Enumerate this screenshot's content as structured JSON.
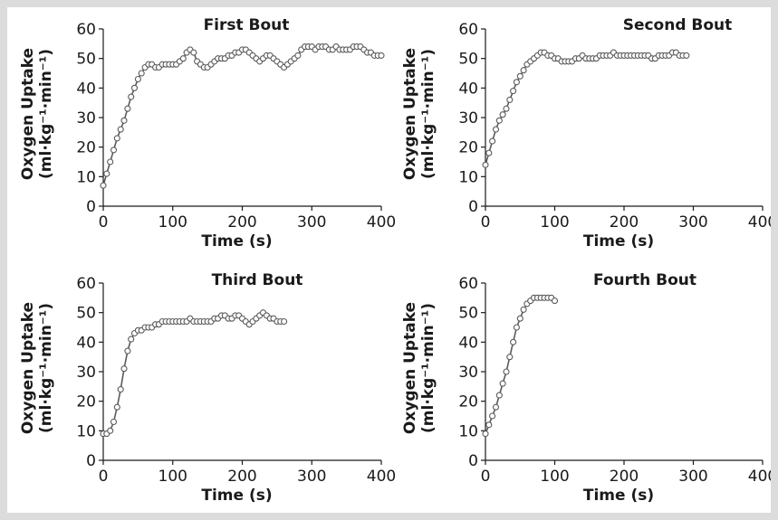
{
  "figure": {
    "chart_data": [
      {
        "type": "line",
        "title": "First Bout",
        "xlabel": "Time (s)",
        "ylabel_line1": "Oxygen Uptake",
        "ylabel_line2": "(ml·kg⁻¹·min⁻¹)",
        "xlim": [
          0,
          400
        ],
        "ylim": [
          0,
          60
        ],
        "xticks": [
          "0",
          "100",
          "200",
          "300",
          "400"
        ],
        "yticks": [
          "0",
          "10",
          "20",
          "30",
          "40",
          "50",
          "60"
        ],
        "grid": false,
        "legend": "none",
        "series": [
          {
            "x": [
              0,
              5,
              10,
              15,
              20,
              25,
              30,
              35,
              40,
              45,
              50,
              55,
              60,
              65,
              70,
              75,
              80,
              85,
              90,
              95,
              100,
              105,
              110,
              115,
              120,
              125,
              130,
              135,
              140,
              145,
              150,
              155,
              160,
              165,
              170,
              175,
              180,
              185,
              190,
              195,
              200,
              205,
              210,
              215,
              220,
              225,
              230,
              235,
              240,
              245,
              250,
              255,
              260,
              265,
              270,
              275,
              280,
              285,
              290,
              295,
              300,
              305,
              310,
              315,
              320,
              325,
              330,
              335,
              340,
              345,
              350,
              355,
              360,
              365,
              370,
              375,
              380,
              385,
              390,
              395,
              400
            ],
            "y": [
              7,
              11,
              15,
              19,
              23,
              26,
              29,
              33,
              37,
              40,
              43,
              45,
              47,
              48,
              48,
              47,
              47,
              48,
              48,
              48,
              48,
              48,
              49,
              50,
              52,
              53,
              52,
              49,
              48,
              47,
              47,
              48,
              49,
              50,
              50,
              50,
              51,
              51,
              52,
              52,
              53,
              53,
              52,
              51,
              50,
              49,
              50,
              51,
              51,
              50,
              49,
              48,
              47,
              48,
              49,
              50,
              51,
              53,
              54,
              54,
              54,
              53,
              54,
              54,
              54,
              53,
              53,
              54,
              53,
              53,
              53,
              53,
              54,
              54,
              54,
              53,
              52,
              52,
              51,
              51,
              51
            ]
          }
        ]
      },
      {
        "type": "line",
        "title": "Second Bout",
        "xlabel": "Time (s)",
        "ylabel_line1": "Oxygen Uptake",
        "ylabel_line2": "(ml·kg⁻¹·min⁻¹)",
        "xlim": [
          0,
          400
        ],
        "ylim": [
          0,
          60
        ],
        "xticks": [
          "0",
          "100",
          "200",
          "300",
          "400"
        ],
        "yticks": [
          "0",
          "10",
          "20",
          "30",
          "40",
          "50",
          "60"
        ],
        "grid": false,
        "legend": "none",
        "series": [
          {
            "x": [
              0,
              5,
              10,
              15,
              20,
              25,
              30,
              35,
              40,
              45,
              50,
              55,
              60,
              65,
              70,
              75,
              80,
              85,
              90,
              95,
              100,
              105,
              110,
              115,
              120,
              125,
              130,
              135,
              140,
              145,
              150,
              155,
              160,
              165,
              170,
              175,
              180,
              185,
              190,
              195,
              200,
              205,
              210,
              215,
              220,
              225,
              230,
              235,
              240,
              245,
              250,
              255,
              260,
              265,
              270,
              275,
              280,
              285,
              290
            ],
            "y": [
              14,
              18,
              22,
              26,
              29,
              31,
              33,
              36,
              39,
              42,
              44,
              46,
              48,
              49,
              50,
              51,
              52,
              52,
              51,
              51,
              50,
              50,
              49,
              49,
              49,
              49,
              50,
              50,
              51,
              50,
              50,
              50,
              50,
              51,
              51,
              51,
              51,
              52,
              51,
              51,
              51,
              51,
              51,
              51,
              51,
              51,
              51,
              51,
              50,
              50,
              51,
              51,
              51,
              51,
              52,
              52,
              51,
              51,
              51
            ]
          }
        ]
      },
      {
        "type": "line",
        "title": "Third Bout",
        "xlabel": "Time (s)",
        "ylabel_line1": "Oxygen Uptake",
        "ylabel_line2": "(ml·kg⁻¹·min⁻¹)",
        "xlim": [
          0,
          400
        ],
        "ylim": [
          0,
          60
        ],
        "xticks": [
          "0",
          "100",
          "200",
          "300",
          "400"
        ],
        "yticks": [
          "0",
          "10",
          "20",
          "30",
          "40",
          "50",
          "60"
        ],
        "grid": false,
        "legend": "none",
        "series": [
          {
            "x": [
              0,
              5,
              10,
              15,
              20,
              25,
              30,
              35,
              40,
              45,
              50,
              55,
              60,
              65,
              70,
              75,
              80,
              85,
              90,
              95,
              100,
              105,
              110,
              115,
              120,
              125,
              130,
              135,
              140,
              145,
              150,
              155,
              160,
              165,
              170,
              175,
              180,
              185,
              190,
              195,
              200,
              205,
              210,
              215,
              220,
              225,
              230,
              235,
              240,
              245,
              250,
              255,
              260
            ],
            "y": [
              9,
              9,
              10,
              13,
              18,
              24,
              31,
              37,
              41,
              43,
              44,
              44,
              45,
              45,
              45,
              46,
              46,
              47,
              47,
              47,
              47,
              47,
              47,
              47,
              47,
              48,
              47,
              47,
              47,
              47,
              47,
              47,
              48,
              48,
              49,
              49,
              48,
              48,
              49,
              49,
              48,
              47,
              46,
              47,
              48,
              49,
              50,
              49,
              48,
              48,
              47,
              47,
              47
            ]
          }
        ]
      },
      {
        "type": "line",
        "title": "Fourth Bout",
        "xlabel": "Time (s)",
        "ylabel_line1": "Oxygen Uptake",
        "ylabel_line2": "(ml·kg⁻¹·min⁻¹)",
        "xlim": [
          0,
          400
        ],
        "ylim": [
          0,
          60
        ],
        "xticks": [
          "0",
          "100",
          "200",
          "300",
          "400"
        ],
        "yticks": [
          "0",
          "10",
          "20",
          "30",
          "40",
          "50",
          "60"
        ],
        "grid": false,
        "legend": "none",
        "series": [
          {
            "x": [
              0,
              5,
              10,
              15,
              20,
              25,
              30,
              35,
              40,
              45,
              50,
              55,
              60,
              65,
              70,
              75,
              80,
              85,
              90,
              95,
              100
            ],
            "y": [
              9,
              12,
              15,
              18,
              22,
              26,
              30,
              35,
              40,
              45,
              48,
              51,
              53,
              54,
              55,
              55,
              55,
              55,
              55,
              55,
              54
            ]
          }
        ]
      }
    ]
  }
}
